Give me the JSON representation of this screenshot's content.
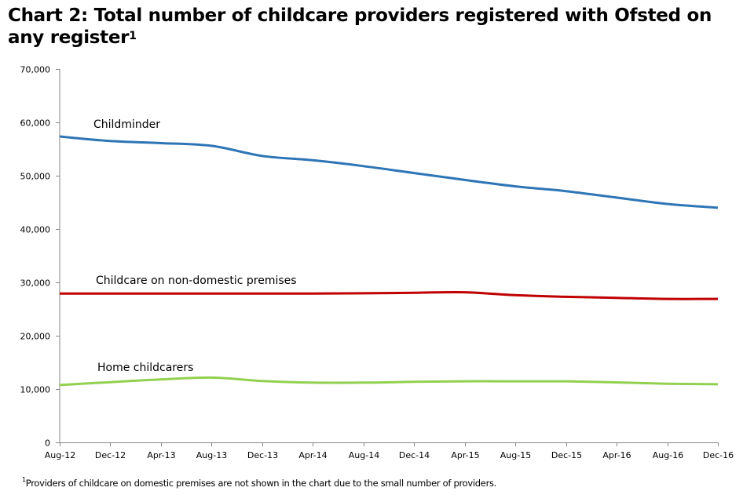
{
  "title": {
    "text": "Chart 2: Total number of childcare providers registered with Ofsted on any register",
    "superscript": "1"
  },
  "footnote": {
    "marker": "1",
    "text": "Providers of childcare on domestic premises are not shown in the chart due to the small number of providers."
  },
  "chart_data": {
    "type": "line",
    "title": "Chart 2: Total number of childcare providers registered with Ofsted on any register",
    "xlabel": "",
    "ylabel": "",
    "ylim": [
      0,
      70000
    ],
    "yticks": [
      0,
      10000,
      20000,
      30000,
      40000,
      50000,
      60000,
      70000
    ],
    "ytick_labels": [
      "0",
      "10,000",
      "20,000",
      "30,000",
      "40,000",
      "50,000",
      "60,000",
      "70,000"
    ],
    "x": [
      "Aug-12",
      "Dec-12",
      "Apr-13",
      "Aug-13",
      "Dec-13",
      "Apr-14",
      "Aug-14",
      "Dec-14",
      "Apr-15",
      "Aug-15",
      "Dec-15",
      "Apr-16",
      "Aug-16",
      "Dec-16"
    ],
    "x_ticks_note": "tick labels shown every 4 months",
    "grid": false,
    "legend": "inline labels",
    "series": [
      {
        "name": "Childminder",
        "color": "#2E75B6",
        "values": [
          57350,
          56500,
          56100,
          55600,
          53700,
          52900,
          51800,
          50500,
          49200,
          48000,
          47100,
          45900,
          44700,
          44000
        ]
      },
      {
        "name": "Childcare on non-domestic premises",
        "color": "#C00000",
        "values": [
          27900,
          27900,
          27900,
          27900,
          27900,
          27900,
          27950,
          28050,
          28150,
          27600,
          27300,
          27100,
          26900,
          26900
        ]
      },
      {
        "name": "Home childcarers",
        "color": "#92D050",
        "values": [
          10750,
          11300,
          11800,
          12150,
          11500,
          11200,
          11200,
          11350,
          11450,
          11450,
          11450,
          11250,
          11000,
          10900
        ]
      }
    ]
  }
}
